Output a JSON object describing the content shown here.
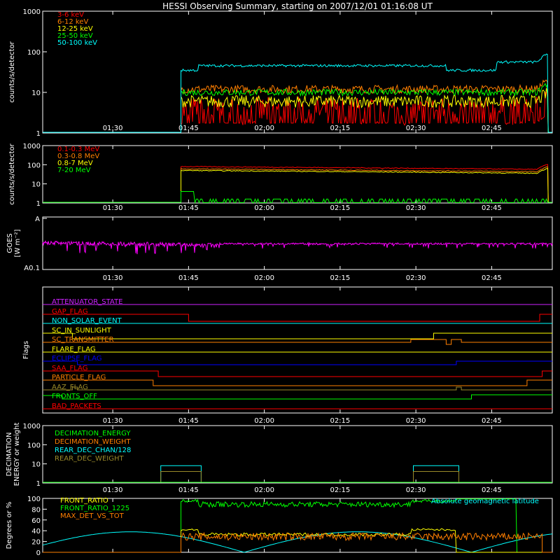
{
  "title": "HESSI Observing Summary, starting on 2007/12/01 01:16:08 UT",
  "time_ticks": [
    "01:30",
    "01:45",
    "02:00",
    "02:15",
    "02:30",
    "02:45"
  ],
  "tick_minutes": [
    90,
    105,
    120,
    135,
    150,
    165
  ],
  "time_range_minutes": [
    76.13,
    177.0
  ],
  "colors": {
    "white": "#ffffff",
    "red": "#ff0000",
    "orange": "#ff7f00",
    "yellow": "#ffff00",
    "green": "#00ff00",
    "cyan": "#00ffff",
    "magenta": "#ff00ff",
    "blue": "#0000ff",
    "olive": "#9a8a2a",
    "purple": "#cc22ff"
  },
  "chart_data": [
    {
      "name": "countrate-low",
      "type": "line",
      "ylabel": "counts/s/detector",
      "yscale": "log",
      "ylim": [
        1,
        1000
      ],
      "yticks": [
        "1",
        "10",
        "100",
        "1000"
      ],
      "ytick_values": [
        1,
        10,
        100,
        1000
      ],
      "series": [
        {
          "name": "3-6 keV",
          "color": "#ff0000",
          "level": 3.5,
          "noise": 0.35,
          "dips": true
        },
        {
          "name": "6-12 keV",
          "color": "#ff7f00",
          "level": 12,
          "noise": 0.1
        },
        {
          "name": "12-25 keV",
          "color": "#ffff00",
          "level": 6,
          "noise": 0.15
        },
        {
          "name": "25-50 keV",
          "color": "#00ff00",
          "level": 10,
          "noise": 0.08
        },
        {
          "name": "50-100 keV",
          "color": "#00ffff",
          "level": 35,
          "noise": 0.03
        }
      ]
    },
    {
      "name": "countrate-high",
      "type": "line",
      "ylabel": "counts/s/detector",
      "yscale": "log",
      "ylim": [
        1,
        1000
      ],
      "yticks": [
        "1",
        "10",
        "100",
        "1000"
      ],
      "ytick_values": [
        1,
        10,
        100,
        1000
      ],
      "series": [
        {
          "name": "0.1-0.3 MeV",
          "color": "#ff0000",
          "level": 80
        },
        {
          "name": "0.3-0.8 MeV",
          "color": "#ff7f00",
          "level": 60
        },
        {
          "name": "0.8-7 MeV",
          "color": "#ffff00",
          "level": 50
        },
        {
          "name": "7-20 MeV",
          "color": "#00ff00",
          "level": 1.2
        }
      ]
    },
    {
      "name": "goes",
      "type": "line",
      "ylabel": "GOES",
      "ylabel2": "[W m⁻²]",
      "yticks": [
        "A",
        "A0.1"
      ],
      "series": [
        {
          "name": "GOES",
          "color": "#ff00ff"
        }
      ]
    },
    {
      "name": "flags",
      "type": "line",
      "ylabel": "Flags",
      "series": [
        {
          "name": "ATTENUATOR_STATE",
          "color": "#cc22ff"
        },
        {
          "name": "GAP_FLAG",
          "color": "#ff0000"
        },
        {
          "name": "NON_SOLAR_EVENT",
          "color": "#00ffff"
        },
        {
          "name": "SC_IN_SUNLIGHT",
          "color": "#ffff00"
        },
        {
          "name": "SC_TRANSMITTER",
          "color": "#ff7f00"
        },
        {
          "name": "FLARE_FLAG",
          "color": "#ffff00"
        },
        {
          "name": "ECLIPSE_FLAG",
          "color": "#0000ff"
        },
        {
          "name": "SAA_FLAG",
          "color": "#ff0000"
        },
        {
          "name": "PARTICLE_FLAG",
          "color": "#ff7f00"
        },
        {
          "name": "AAZ_FLAG",
          "color": "#9a8a2a"
        },
        {
          "name": "FRONTS_OFF",
          "color": "#00ff00"
        },
        {
          "name": "BAD_PACKETS",
          "color": "#ff0000"
        }
      ]
    },
    {
      "name": "decimation",
      "type": "line",
      "ylabel": "DECIMATION",
      "ylabel2": "ENERGY or weight",
      "yscale": "log",
      "ylim": [
        1,
        1000
      ],
      "yticks": [
        "1",
        "10",
        "100",
        "1000"
      ],
      "ytick_values": [
        1,
        10,
        100,
        1000
      ],
      "series": [
        {
          "name": "DECIMATION_ENERGY",
          "color": "#00ff00"
        },
        {
          "name": "DECIMATION_WEIGHT",
          "color": "#ff7f00"
        },
        {
          "name": "REAR_DEC_CHAN/128",
          "color": "#00ffff"
        },
        {
          "name": "REAR_DEC_WEIGHT",
          "color": "#9a8a2a"
        }
      ]
    },
    {
      "name": "ratios",
      "type": "line",
      "ylabel": "Degrees or %",
      "ylim": [
        0,
        100
      ],
      "yticks": [
        "0",
        "20",
        "40",
        "60",
        "80",
        "100"
      ],
      "ytick_values": [
        0,
        20,
        40,
        60,
        80,
        100
      ],
      "series": [
        {
          "name": "FRONT_RATIO",
          "color": "#ffff00"
        },
        {
          "name": "FRONT_RATIO_1225",
          "color": "#00ff00"
        },
        {
          "name": "MAX_DET_VS_TOT",
          "color": "#ff7f00"
        },
        {
          "name": "Absolute geomagnetic latitude",
          "color": "#00ffff"
        }
      ]
    }
  ]
}
